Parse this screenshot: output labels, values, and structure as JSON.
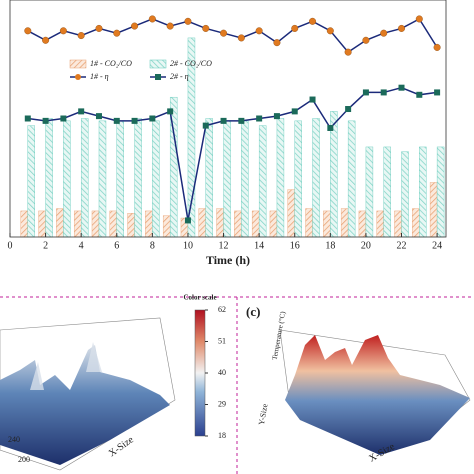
{
  "chart_data": {
    "type": "bar-line",
    "x_label": "Time (h)",
    "xlim": [
      0,
      24.5
    ],
    "xticks": [
      0,
      2,
      4,
      6,
      8,
      10,
      12,
      14,
      16,
      18,
      20,
      22,
      24
    ],
    "ylim": [
      0,
      100
    ],
    "categories": [
      1,
      2,
      3,
      4,
      5,
      6,
      7,
      8,
      9,
      10,
      11,
      12,
      13,
      14,
      15,
      16,
      17,
      18,
      19,
      20,
      21,
      22,
      23,
      24
    ],
    "bars": [
      {
        "name": "1# - CO₂/CO",
        "color": "#e8a070",
        "values": [
          11,
          11,
          12,
          11,
          11,
          11,
          10,
          11,
          9,
          8,
          12,
          12,
          11,
          11,
          11,
          20,
          12,
          11,
          12,
          11,
          11,
          11,
          12,
          23
        ]
      },
      {
        "name": "2# - CO₂/CO",
        "color": "#5cc8b8",
        "values": [
          47,
          50,
          49,
          50,
          49,
          49,
          50,
          49,
          59,
          84,
          50,
          49,
          49,
          47,
          50,
          49,
          50,
          53,
          49,
          38,
          38,
          36,
          38,
          38
        ]
      }
    ],
    "series": [
      {
        "name": "1# - η",
        "color": "#e07a20",
        "marker": "circle",
        "values": [
          87,
          83,
          87,
          85,
          88,
          86,
          89,
          92,
          89,
          91,
          88,
          86,
          84,
          87,
          82,
          88,
          91,
          87,
          78,
          83,
          86,
          88,
          92,
          80
        ]
      },
      {
        "name": "2# - η",
        "color": "#1b2a7a",
        "marker": "square",
        "values": [
          50,
          49,
          50,
          53,
          51,
          49,
          49,
          50,
          53,
          7,
          47,
          49,
          49,
          50,
          51,
          53,
          58,
          46,
          54,
          61,
          61,
          63,
          60,
          61
        ]
      }
    ]
  },
  "panels": {
    "label": "(c)",
    "colorbar_title": "Color scale",
    "colorbar_lim": [
      18,
      62
    ],
    "colorbar_ticks": [
      18,
      29,
      40,
      51,
      62
    ],
    "x_size": "X-Size",
    "y_size": "Y-Size",
    "z_label": "Temperature (°C)"
  }
}
